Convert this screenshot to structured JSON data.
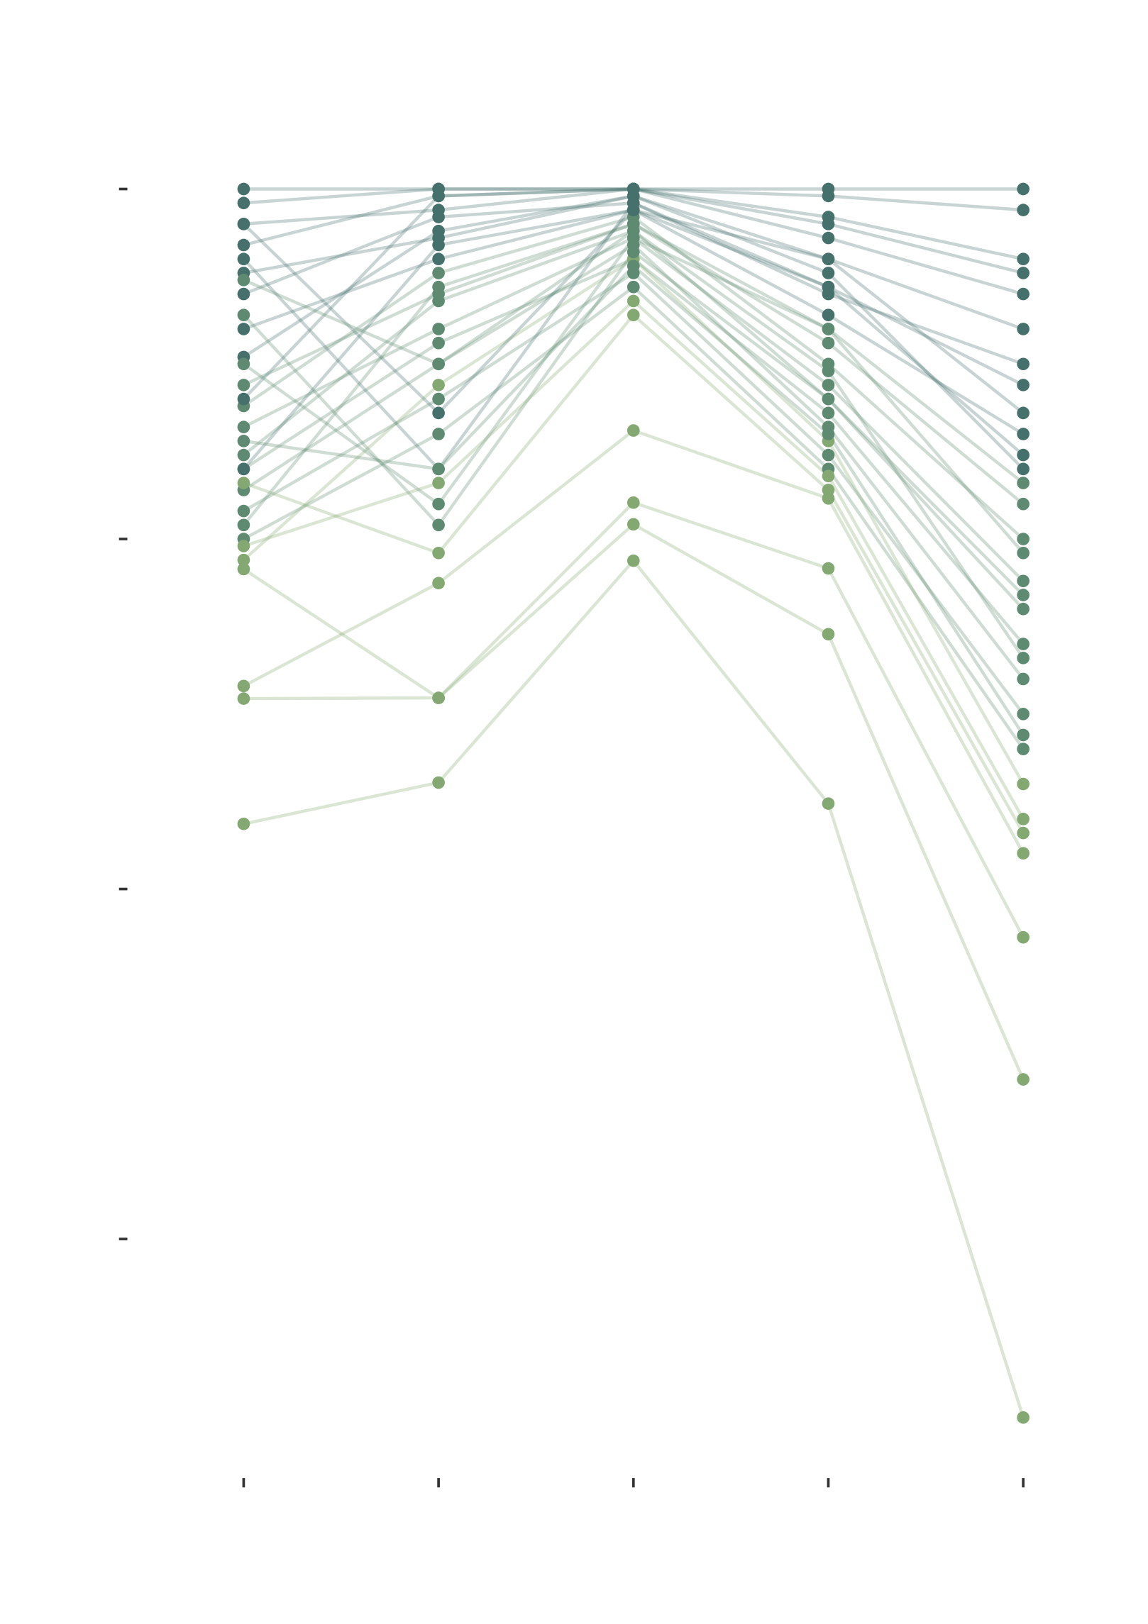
{
  "chart_data": {
    "type": "parallel-line",
    "x": [
      0,
      1,
      2,
      3,
      4
    ],
    "xlim": [
      -1.25,
      4.64
    ],
    "xticks": [
      0,
      1,
      2,
      3,
      4
    ],
    "ylim": [
      -1.05,
      1.27
    ],
    "yticks": [
      1,
      0.5,
      0,
      -0.5
    ],
    "line_opacity": 0.3,
    "series": [
      {
        "color": "#46706c",
        "values": [
          1,
          1,
          1,
          1,
          1
        ]
      },
      {
        "color": "#46706c",
        "values": [
          0.98,
          1,
          1,
          0.99,
          0.97
        ]
      },
      {
        "color": "#46706c",
        "values": [
          0.95,
          0.97,
          1,
          0.96,
          0.9
        ]
      },
      {
        "color": "#46706c",
        "values": [
          0.92,
          0.99,
          1,
          0.93,
          0.85
        ]
      },
      {
        "color": "#46706c",
        "values": [
          0.88,
          0.93,
          0.99,
          0.9,
          0.8
        ]
      },
      {
        "color": "#46706c",
        "values": [
          0.85,
          0.96,
          0.98,
          0.86,
          0.72
        ]
      },
      {
        "color": "#46706c",
        "values": [
          0.8,
          0.9,
          0.97,
          0.82,
          0.65
        ]
      },
      {
        "color": "#46706c",
        "values": [
          0.76,
          0.94,
          0.99,
          0.88,
          0.6
        ]
      },
      {
        "color": "#5e8a72",
        "values": [
          0.72,
          0.85,
          0.95,
          0.78,
          0.55
        ]
      },
      {
        "color": "#5e8a72",
        "values": [
          0.69,
          0.88,
          0.96,
          0.75,
          0.5
        ]
      },
      {
        "color": "#5e8a72",
        "values": [
          0.66,
          0.8,
          0.93,
          0.72,
          0.44
        ]
      },
      {
        "color": "#5e8a72",
        "values": [
          0.62,
          0.84,
          0.94,
          0.7,
          0.4
        ]
      },
      {
        "color": "#5e8a72",
        "values": [
          0.6,
          0.78,
          0.9,
          0.68,
          0.35
        ]
      },
      {
        "color": "#5e8a72",
        "values": [
          0.57,
          0.75,
          0.92,
          0.66,
          0.3
        ]
      },
      {
        "color": "#5e8a72",
        "values": [
          0.54,
          0.7,
          0.88,
          0.62,
          0.25
        ]
      },
      {
        "color": "#5e8a72",
        "values": [
          0.5,
          0.65,
          0.86,
          0.6,
          0.2
        ]
      },
      {
        "color": "#84a872",
        "values": [
          0.47,
          0.72,
          0.9,
          0.64,
          0.15
        ]
      },
      {
        "color": "#46706c",
        "values": [
          0.9,
          0.6,
          0.98,
          0.85,
          0.75
        ]
      },
      {
        "color": "#5e8a72",
        "values": [
          0.75,
          0.55,
          0.93,
          0.8,
          0.58
        ]
      },
      {
        "color": "#46706c",
        "values": [
          0.95,
          0.68,
          0.97,
          0.9,
          0.68
        ]
      },
      {
        "color": "#5e8a72",
        "values": [
          0.82,
          0.52,
          0.91,
          0.7,
          0.42
        ]
      },
      {
        "color": "#46706c",
        "values": [
          0.7,
          0.99,
          1,
          0.95,
          0.88
        ]
      },
      {
        "color": "#46706c",
        "values": [
          0.6,
          0.92,
          0.97,
          0.86,
          0.62
        ]
      },
      {
        "color": "#5e8a72",
        "values": [
          0.52,
          0.86,
          0.95,
          0.8,
          0.48
        ]
      },
      {
        "color": "#5e8a72",
        "values": [
          0.87,
          0.75,
          0.94,
          0.74,
          0.33
        ]
      },
      {
        "color": "#5e8a72",
        "values": [
          0.64,
          0.6,
          0.89,
          0.65,
          0.22
        ]
      },
      {
        "color": "#84a872",
        "values": [
          0.49,
          0.58,
          0.84,
          0.59,
          0.1
        ]
      },
      {
        "color": "#84a872",
        "values": [
          0.58,
          0.48,
          0.82,
          0.57,
          0.08
        ]
      },
      {
        "color": "#84a872",
        "values": [
          0.29,
          0.437,
          0.655,
          0.558,
          0.051
        ]
      },
      {
        "color": "#84a872",
        "values": [
          0.457,
          0.273,
          0.552,
          0.458,
          -0.069
        ]
      },
      {
        "color": "#84a872",
        "values": [
          0.272,
          0.273,
          0.521,
          0.364,
          -0.272
        ]
      },
      {
        "color": "#84a872",
        "values": [
          0.093,
          0.152,
          0.469,
          0.122,
          -0.755
        ]
      }
    ]
  }
}
